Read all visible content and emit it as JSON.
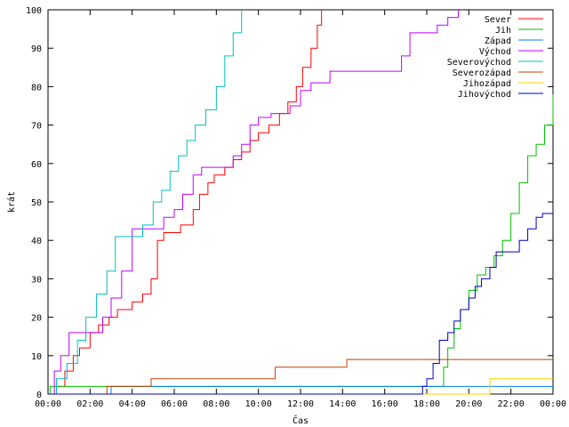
{
  "chart_data": {
    "type": "line",
    "step": true,
    "xlabel": "Čas",
    "ylabel": "krát",
    "xlim": [
      0,
      24
    ],
    "ylim": [
      0,
      100
    ],
    "x_ticks": [
      {
        "value": 0,
        "label": "00:00"
      },
      {
        "value": 2,
        "label": "02:00"
      },
      {
        "value": 4,
        "label": "04:00"
      },
      {
        "value": 6,
        "label": "06:00"
      },
      {
        "value": 8,
        "label": "08:00"
      },
      {
        "value": 10,
        "label": "10:00"
      },
      {
        "value": 12,
        "label": "12:00"
      },
      {
        "value": 14,
        "label": "14:00"
      },
      {
        "value": 16,
        "label": "16:00"
      },
      {
        "value": 18,
        "label": "18:00"
      },
      {
        "value": 20,
        "label": "20:00"
      },
      {
        "value": 22,
        "label": "22:00"
      },
      {
        "value": 24,
        "label": "00:00"
      }
    ],
    "y_ticks": [
      0,
      10,
      20,
      30,
      40,
      50,
      60,
      70,
      80,
      90,
      100
    ],
    "grid": false,
    "legend_position": "top-right",
    "series": [
      {
        "name": "Sever",
        "color": "#ff0000",
        "x": [
          0,
          0.4,
          0.8,
          1.2,
          1.5,
          2.0,
          2.4,
          2.9,
          3.3,
          3.6,
          4.0,
          4.5,
          4.9,
          5.2,
          5.5,
          6.0,
          6.3,
          6.9,
          7.2,
          7.6,
          7.9,
          8.4,
          8.8,
          9.2,
          9.6,
          10.0,
          10.5,
          11.0,
          11.4,
          11.8,
          12.1,
          12.5,
          12.8,
          13.0
        ],
        "y": [
          0,
          2,
          6,
          10,
          12,
          16,
          18,
          20,
          22,
          22,
          24,
          26,
          30,
          40,
          42,
          42,
          44,
          48,
          52,
          55,
          57,
          59,
          61,
          63,
          66,
          68,
          70,
          73,
          76,
          80,
          85,
          90,
          96,
          100
        ]
      },
      {
        "name": "Jih",
        "color": "#00c000",
        "x": [
          0,
          0.1,
          0.5,
          18.0,
          18.8,
          19.0,
          19.3,
          19.6,
          20.0,
          20.4,
          20.8,
          21.2,
          21.6,
          22.0,
          22.4,
          22.8,
          23.2,
          23.6,
          24.0
        ],
        "y": [
          0,
          2,
          2,
          2,
          7,
          12,
          17,
          22,
          27,
          31,
          33,
          36,
          40,
          47,
          55,
          62,
          65,
          70,
          78
        ]
      },
      {
        "name": "Západ",
        "color": "#0080ff",
        "x": [
          0,
          3.0,
          9.0,
          23.5,
          23.8,
          24.0
        ],
        "y": [
          0,
          2,
          2,
          2,
          2,
          2
        ]
      },
      {
        "name": "Východ",
        "color": "#c000ff",
        "x": [
          0,
          0.3,
          0.6,
          1.0,
          1.6,
          2.3,
          2.6,
          3.0,
          3.5,
          4.0,
          4.5,
          5.0,
          5.5,
          6.0,
          6.4,
          6.9,
          7.3,
          8.0,
          8.8,
          9.2,
          9.6,
          10.0,
          10.6,
          11.0,
          11.5,
          12.0,
          12.5,
          13.0,
          13.4,
          14.0,
          15.0,
          16.0,
          16.8,
          17.2,
          18.0,
          18.5,
          19.0,
          19.5
        ],
        "y": [
          0,
          6,
          10,
          16,
          16,
          16,
          20,
          25,
          32,
          43,
          43,
          43,
          46,
          48,
          52,
          57,
          59,
          59,
          62,
          65,
          70,
          72,
          73,
          73,
          75,
          79,
          81,
          81,
          84,
          84,
          84,
          84,
          88,
          94,
          94,
          96,
          98,
          100
        ]
      },
      {
        "name": "Severovýchod",
        "color": "#00c0c0",
        "x": [
          0,
          0.4,
          0.9,
          1.4,
          1.8,
          2.3,
          2.8,
          3.2,
          3.6,
          4.0,
          4.5,
          5.0,
          5.4,
          5.8,
          6.2,
          6.6,
          7.0,
          7.5,
          8.0,
          8.4,
          8.8,
          9.2
        ],
        "y": [
          0,
          4,
          8,
          14,
          20,
          26,
          32,
          41,
          41,
          41,
          44,
          50,
          53,
          58,
          62,
          66,
          70,
          74,
          80,
          88,
          94,
          100
        ]
      },
      {
        "name": "Severozápad",
        "color": "#c04000",
        "x": [
          0,
          2.8,
          4.9,
          10.8,
          14.2,
          24.0
        ],
        "y": [
          0,
          2,
          4,
          7,
          9,
          9
        ]
      },
      {
        "name": "Jihozápad",
        "color": "#ffd000",
        "x": [
          0,
          20.8,
          21.0,
          24.0
        ],
        "y": [
          0,
          0,
          4,
          4
        ]
      },
      {
        "name": "Jihovýchod",
        "color": "#0000c0",
        "x": [
          0,
          17.8,
          18.0,
          18.3,
          18.6,
          19.0,
          19.3,
          19.6,
          20.0,
          20.3,
          20.6,
          21.0,
          21.3,
          21.6,
          22.0,
          22.4,
          22.8,
          23.2,
          23.5,
          23.8,
          24.0
        ],
        "y": [
          0,
          2,
          4,
          8,
          14,
          16,
          19,
          22,
          25,
          28,
          30,
          33,
          37,
          37,
          37,
          40,
          43,
          46,
          47,
          47,
          47
        ]
      }
    ]
  }
}
